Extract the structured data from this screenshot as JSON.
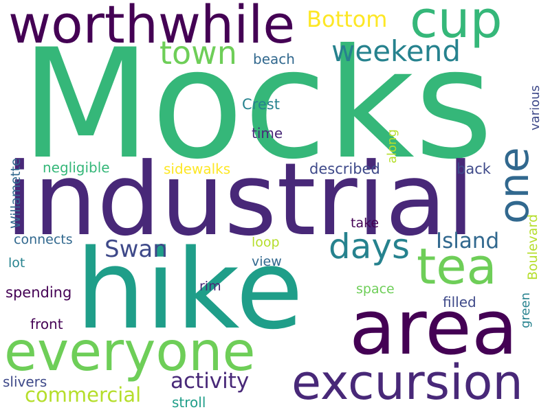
{
  "background": "#ffffff",
  "palette": {
    "dark_purple": "#440154",
    "indigo": "#482878",
    "slate_blue": "#3e4989",
    "steel_blue": "#31688e",
    "teal_blue": "#26828e",
    "teal": "#1f9e89",
    "green": "#35b779",
    "light_green": "#6ece58",
    "lime": "#b5de2b",
    "yellow": "#fde725"
  },
  "words": [
    {
      "text": "Mocks",
      "color": "#35b779"
    },
    {
      "text": "industrial",
      "color": "#482878"
    },
    {
      "text": "hike",
      "color": "#1f9e89"
    },
    {
      "text": "area",
      "color": "#440154"
    },
    {
      "text": "everyone",
      "color": "#6ece58"
    },
    {
      "text": "excursion",
      "color": "#482878"
    },
    {
      "text": "worthwhile",
      "color": "#440154"
    },
    {
      "text": "cup",
      "color": "#35b779"
    },
    {
      "text": "tea",
      "color": "#6ece58"
    },
    {
      "text": "one",
      "color": "#31688e"
    },
    {
      "text": "weekend",
      "color": "#26828e"
    },
    {
      "text": "town",
      "color": "#6ece58"
    },
    {
      "text": "days",
      "color": "#26828e"
    },
    {
      "text": "Bottom",
      "color": "#fde725"
    },
    {
      "text": "Swan",
      "color": "#3e4989"
    },
    {
      "text": "Island",
      "color": "#31688e"
    },
    {
      "text": "activity",
      "color": "#482878"
    },
    {
      "text": "commercial",
      "color": "#b5de2b"
    },
    {
      "text": "beach",
      "color": "#31688e"
    },
    {
      "text": "Crest",
      "color": "#26828e"
    },
    {
      "text": "time",
      "color": "#482878"
    },
    {
      "text": "along",
      "color": "#b5de2b"
    },
    {
      "text": "various",
      "color": "#3e4989"
    },
    {
      "text": "Willamette",
      "color": "#31688e"
    },
    {
      "text": "negligible",
      "color": "#35b779"
    },
    {
      "text": "sidewalks",
      "color": "#fde725"
    },
    {
      "text": "described",
      "color": "#3e4989"
    },
    {
      "text": "back",
      "color": "#3e4989"
    },
    {
      "text": "Boulevard",
      "color": "#b5de2b"
    },
    {
      "text": "take",
      "color": "#440154"
    },
    {
      "text": "connects",
      "color": "#31688e"
    },
    {
      "text": "loop",
      "color": "#b5de2b"
    },
    {
      "text": "lot",
      "color": "#26828e"
    },
    {
      "text": "view",
      "color": "#31688e"
    },
    {
      "text": "green",
      "color": "#26828e"
    },
    {
      "text": "spending",
      "color": "#440154"
    },
    {
      "text": "rim",
      "color": "#482878"
    },
    {
      "text": "space",
      "color": "#6ece58"
    },
    {
      "text": "filled",
      "color": "#3e4989"
    },
    {
      "text": "front",
      "color": "#440154"
    },
    {
      "text": "slivers",
      "color": "#3e4989"
    },
    {
      "text": "stroll",
      "color": "#1f9e89"
    }
  ]
}
